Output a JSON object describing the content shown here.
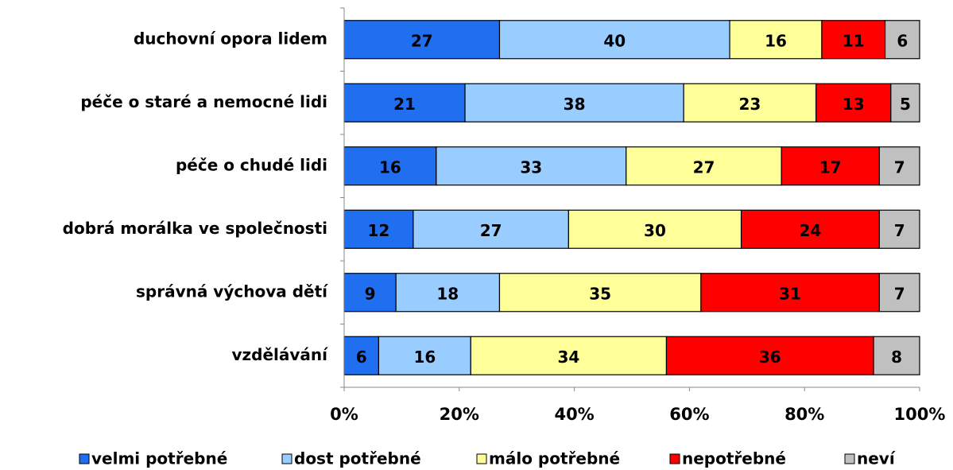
{
  "chart_data": {
    "type": "stacked_bar_horizontal",
    "categories": [
      "duchovní opora lidem",
      "péče o staré a nemocné lidi",
      "péče o chudé lidi",
      "dobrá morálka ve společnosti",
      "správná výchova dětí",
      "vzdělávání"
    ],
    "series": [
      {
        "name": "velmi potřebné",
        "color": "#1f6ff0",
        "values": [
          27,
          21,
          16,
          12,
          9,
          6
        ]
      },
      {
        "name": "dost potřebné",
        "color": "#99ccff",
        "values": [
          40,
          38,
          33,
          27,
          18,
          16
        ]
      },
      {
        "name": "málo potřebné",
        "color": "#ffff99",
        "values": [
          16,
          23,
          27,
          30,
          35,
          34
        ]
      },
      {
        "name": "nepotřebné",
        "color": "#ff0000",
        "values": [
          11,
          13,
          17,
          24,
          31,
          36
        ]
      },
      {
        "name": "neví",
        "color": "#c0c0c0",
        "values": [
          6,
          5,
          7,
          7,
          7,
          8
        ]
      }
    ],
    "xlim": [
      0,
      100
    ],
    "xticks": [
      {
        "value": 0,
        "label": "0%"
      },
      {
        "value": 20,
        "label": "20%"
      },
      {
        "value": 40,
        "label": "40%"
      },
      {
        "value": 60,
        "label": "60%"
      },
      {
        "value": 80,
        "label": "80%"
      },
      {
        "value": 100,
        "label": "100%"
      }
    ],
    "legend": "bottom"
  }
}
